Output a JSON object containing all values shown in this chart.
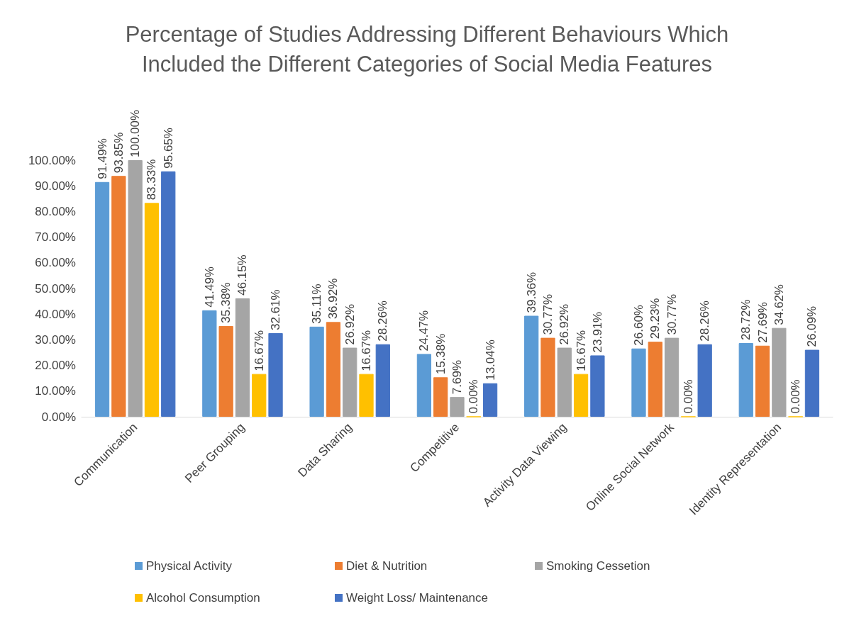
{
  "chart_data": {
    "type": "bar",
    "title": "Percentage of Studies Addressing Different Behaviours Which\nIncluded the Different Categories of Social Media Features",
    "categories": [
      "Communication",
      "Peer Grouping",
      "Data Sharing",
      "Competitive",
      "Activity Data Viewing",
      "Online Social Network",
      "Identity Representation"
    ],
    "series": [
      {
        "name": "Physical Activity",
        "color": "#5b9bd5",
        "values": [
          91.49,
          41.49,
          35.11,
          24.47,
          39.36,
          26.6,
          28.72
        ],
        "value_labels": [
          "91.49%",
          "41.49%",
          "35.11%",
          "24.47%",
          "39.36%",
          "26.60%",
          "28.72%"
        ]
      },
      {
        "name": "Diet & Nutrition",
        "color": "#ed7d31",
        "values": [
          93.85,
          35.38,
          36.92,
          15.38,
          30.77,
          29.23,
          27.69
        ],
        "value_labels": [
          "93.85%",
          "35.38%",
          "36.92%",
          "15.38%",
          "30.77%",
          "29.23%",
          "27.69%"
        ]
      },
      {
        "name": "Smoking Cessetion",
        "color": "#a5a5a5",
        "values": [
          100,
          46.15,
          26.92,
          7.69,
          26.92,
          30.77,
          34.62
        ],
        "value_labels": [
          "100.00%",
          "46.15%",
          "26.92%",
          "7.69%",
          "26.92%",
          "30.77%",
          "34.62%"
        ]
      },
      {
        "name": "Alcohol Consumption",
        "color": "#ffc000",
        "values": [
          83.33,
          16.67,
          16.67,
          0,
          16.67,
          0,
          0
        ],
        "value_labels": [
          "83.33%",
          "16.67%",
          "16.67%",
          "0.00%",
          "16.67%",
          "0.00%",
          "0.00%"
        ]
      },
      {
        "name": "Weight Loss/ Maintenance",
        "color": "#4472c4",
        "values": [
          95.65,
          32.61,
          28.26,
          13.04,
          23.91,
          28.26,
          26.09
        ],
        "value_labels": [
          "95.65%",
          "32.61%",
          "28.26%",
          "13.04%",
          "23.91%",
          "28.26%",
          "26.09%"
        ]
      }
    ],
    "ylim": [
      0,
      100
    ],
    "yticks": [
      {
        "value": 0,
        "label": "0.00%"
      },
      {
        "value": 10,
        "label": "10.00%"
      },
      {
        "value": 20,
        "label": "20.00%"
      },
      {
        "value": 30,
        "label": "30.00%"
      },
      {
        "value": 40,
        "label": "40.00%"
      },
      {
        "value": 50,
        "label": "50.00%"
      },
      {
        "value": 60,
        "label": "60.00%"
      },
      {
        "value": 70,
        "label": "70.00%"
      },
      {
        "value": 80,
        "label": "80.00%"
      },
      {
        "value": 90,
        "label": "90.00%"
      },
      {
        "value": 100,
        "label": "100.00%"
      }
    ],
    "grid": false,
    "legend": "bottom"
  }
}
